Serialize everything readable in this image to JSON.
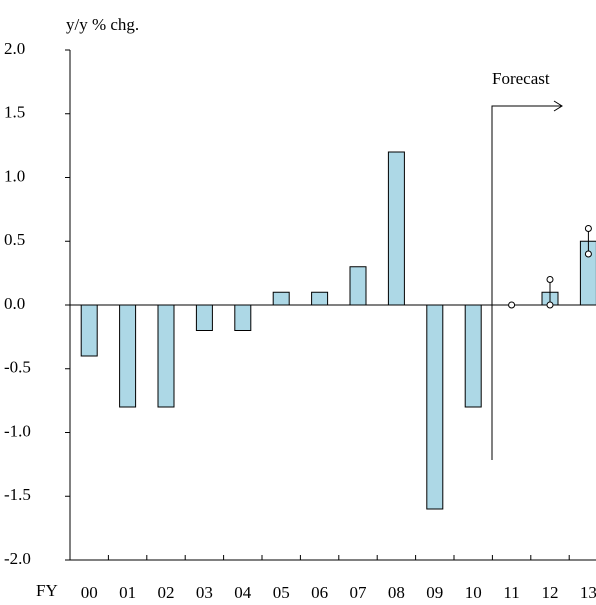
{
  "chart_data": {
    "type": "bar",
    "y_axis_label": "y/y % chg.",
    "x_axis_label": "FY",
    "annotation": "Forecast",
    "categories": [
      "00",
      "01",
      "02",
      "03",
      "04",
      "05",
      "06",
      "07",
      "08",
      "09",
      "10",
      "11",
      "12",
      "13"
    ],
    "values": [
      -0.4,
      -0.8,
      -0.8,
      -0.2,
      -0.2,
      0.1,
      0.1,
      0.3,
      1.2,
      -1.6,
      -0.8,
      0,
      0.1,
      0.5
    ],
    "range_low": [
      null,
      null,
      null,
      null,
      null,
      null,
      null,
      null,
      null,
      null,
      null,
      0,
      0,
      0.4
    ],
    "range_high": [
      null,
      null,
      null,
      null,
      null,
      null,
      null,
      null,
      null,
      null,
      null,
      0,
      0.2,
      0.6
    ],
    "color": "#add8e6",
    "ylim": [
      -2,
      2
    ],
    "yticks": [
      {
        "value": 2,
        "label": "2.0"
      },
      {
        "value": 1.5,
        "label": "1.5"
      },
      {
        "value": 1,
        "label": "1.0"
      },
      {
        "value": 0.5,
        "label": "0.5"
      },
      {
        "value": 0,
        "label": "0.0"
      },
      {
        "value": -0.5,
        "label": "-0.5"
      },
      {
        "value": -1,
        "label": "-1.0"
      },
      {
        "value": -1.5,
        "label": "-1.5"
      },
      {
        "value": -2,
        "label": "-2.0"
      }
    ]
  }
}
